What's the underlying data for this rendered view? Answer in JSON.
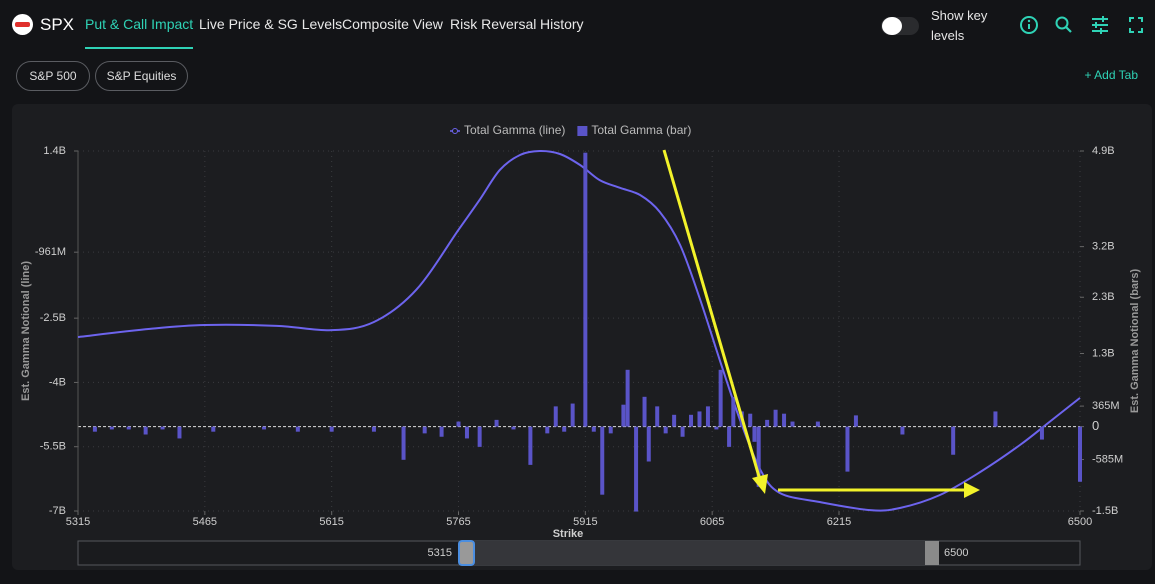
{
  "nav": {
    "brand": "SPX",
    "tabs": [
      "Put & Call Impact",
      "Live Price & SG Levels",
      "Composite View",
      "Risk Reversal",
      "History"
    ],
    "active_tab": 0,
    "toggle_label": "Show key levels",
    "toggle_on": false
  },
  "chips": [
    "S&P 500",
    "S&P Equities"
  ],
  "add_tab": "+ Add Tab",
  "range_slider": {
    "from": 5315,
    "to": 6500
  },
  "chart_data": {
    "type": "combo",
    "xlabel": "Strike",
    "ylabel": "Est. Gamma Notional (line)",
    "y2label": "Est. Gamma Notional (bars)",
    "xlim": [
      5315,
      6500
    ],
    "xticks": [
      5315,
      5465,
      5615,
      5765,
      5915,
      6065,
      6215,
      6500
    ],
    "ylim": [
      -7000000000,
      1400000000
    ],
    "yticks": [
      {
        "value": 1400000000,
        "label": "1.4B"
      },
      {
        "value": -961000000,
        "label": "-961M"
      },
      {
        "value": -2500000000,
        "label": "-2.5B"
      },
      {
        "value": -4000000000,
        "label": "-4B"
      },
      {
        "value": -5500000000,
        "label": "-5.5B"
      },
      {
        "value": -7000000000,
        "label": "-7B"
      }
    ],
    "y2lim": [
      -1500000000,
      4900000000
    ],
    "y2ticks": [
      {
        "value": 4900000000,
        "label": "4.9B"
      },
      {
        "value": 3200000000,
        "label": "3.2B"
      },
      {
        "value": 2300000000,
        "label": "2.3B"
      },
      {
        "value": 1300000000,
        "label": "1.3B"
      },
      {
        "value": 365000000,
        "label": "365M"
      },
      0,
      {
        "value": -585000000,
        "label": "-585M"
      },
      {
        "value": -1500000000,
        "label": "-1.5B"
      }
    ],
    "grid": true,
    "legend": "top",
    "series": [
      {
        "name": "Total Gamma (line)",
        "type": "line",
        "color": "#6d64ee",
        "x": [
          5315,
          5400,
          5465,
          5550,
          5615,
          5665,
          5715,
          5765,
          5790,
          5814,
          5838,
          5861,
          5885,
          5909,
          5932,
          5956,
          5980,
          6003,
          6027,
          6051,
          6074,
          6098,
          6122,
          6145,
          6192,
          6252,
          6287,
          6334,
          6382,
          6429,
          6464,
          6500
        ],
        "values": [
          -2940000000,
          -2750000000,
          -2660000000,
          -2680000000,
          -2780000000,
          -2590000000,
          -1840000000,
          -440000000,
          260000000,
          960000000,
          1310000000,
          1400000000,
          1330000000,
          1070000000,
          720000000,
          540000000,
          370000000,
          -20000000,
          -790000000,
          -2080000000,
          -3480000000,
          -4880000000,
          -6040000000,
          -6580000000,
          -6790000000,
          -6980000000,
          -6930000000,
          -6630000000,
          -6090000000,
          -5460000000,
          -4920000000,
          -4360000000
        ]
      },
      {
        "name": "Total Gamma (bar)",
        "type": "bar",
        "axis": "y2",
        "color": "#5a54c8",
        "x": [
          5335,
          5355,
          5375,
          5395,
          5415,
          5435,
          5475,
          5535,
          5575,
          5615,
          5665,
          5700,
          5725,
          5745,
          5765,
          5775,
          5790,
          5810,
          5830,
          5850,
          5870,
          5880,
          5890,
          5900,
          5915,
          5925,
          5935,
          5945,
          5960,
          5965,
          5975,
          5985,
          5990,
          6000,
          6010,
          6020,
          6030,
          6040,
          6050,
          6060,
          6070,
          6075,
          6085,
          6090,
          6100,
          6110,
          6115,
          6120,
          6130,
          6140,
          6150,
          6160,
          6190,
          6225,
          6235,
          6290,
          6350,
          6400,
          6455,
          6500
        ],
        "values": [
          -90000000,
          -50000000,
          -50000000,
          -140000000,
          -50000000,
          -210000000,
          -90000000,
          -50000000,
          -90000000,
          -90000000,
          -90000000,
          -590000000,
          -120000000,
          -180000000,
          90000000,
          -210000000,
          -360000000,
          120000000,
          -50000000,
          -680000000,
          -120000000,
          360000000,
          -90000000,
          410000000,
          4870000000,
          -90000000,
          -1210000000,
          -120000000,
          390000000,
          1010000000,
          -1510000000,
          530000000,
          -620000000,
          360000000,
          -120000000,
          210000000,
          -180000000,
          210000000,
          270000000,
          360000000,
          -50000000,
          1010000000,
          -360000000,
          530000000,
          270000000,
          230000000,
          -270000000,
          -1070000000,
          120000000,
          300000000,
          230000000,
          90000000,
          90000000,
          -800000000,
          200000000,
          -140000000,
          -500000000,
          270000000,
          -230000000,
          -980000000
        ]
      }
    ]
  }
}
